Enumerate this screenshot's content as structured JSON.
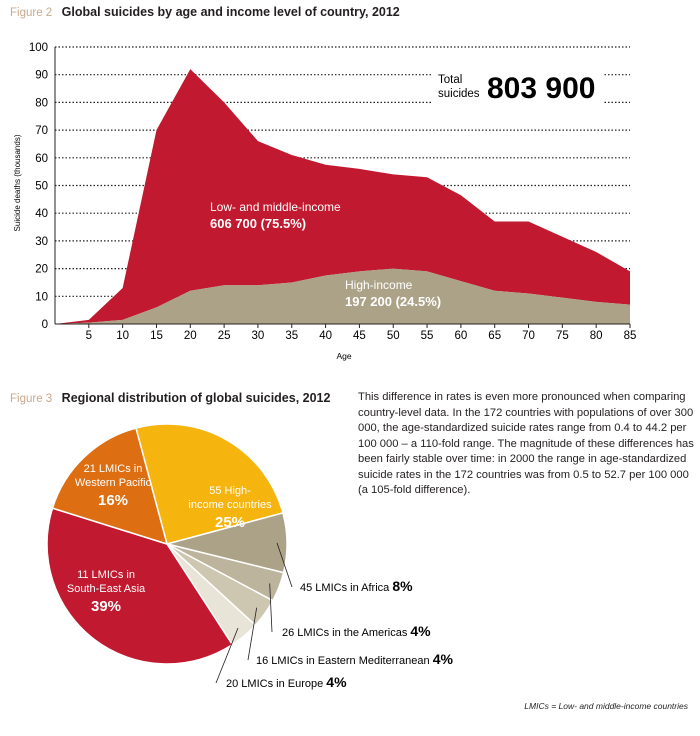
{
  "figure2": {
    "label": "Figure 2",
    "title": "Global suicides by age and income level of country, 2012"
  },
  "figure3": {
    "label": "Figure 3",
    "title": "Regional distribution of global suicides, 2012"
  },
  "total_box": {
    "label_line1": "Total",
    "label_line2": "suicides",
    "value": "803 900"
  },
  "paragraph": "This difference in rates is even more pronounced when comparing country-level data. In the 172 countries with populations of over 300 000, the age-standardized suicide rates range from 0.4 to 44.2 per 100 000 – a 110-fold range. The magnitude of these differences has been fairly stable over time: in 2000 the range in age-standardized suicide rates in the 172 countries was from 0.5 to 52.7 per 100 000 (a 105-fold difference).",
  "footnote": "LMICs = Low- and middle-income countries",
  "colors": {
    "lmic": "#c1192f",
    "high": "#aca288",
    "pie_yellow": "#f6b40f",
    "pie_orange": "#de6e12",
    "pie_red": "#c1192f",
    "pie_africa": "#aca288",
    "pie_americas": "#bcb49c",
    "pie_emed": "#cdc6b0",
    "pie_europe": "#e8e4d8"
  },
  "chart_data": [
    {
      "type": "area",
      "x": [
        0,
        5,
        10,
        15,
        20,
        25,
        30,
        35,
        40,
        45,
        50,
        55,
        60,
        65,
        70,
        75,
        80,
        85
      ],
      "xticks": [
        "5",
        "10",
        "15",
        "20",
        "25",
        "30",
        "35",
        "40",
        "45",
        "50",
        "55",
        "60",
        "65",
        "70",
        "75",
        "80",
        "85"
      ],
      "xlabel": "Age",
      "ylabel": "Suicide deaths (thousands)",
      "ylim": [
        0,
        100
      ],
      "yticks": [
        "0",
        "10",
        "20",
        "30",
        "40",
        "50",
        "60",
        "70",
        "80",
        "90",
        "100"
      ],
      "grid": "horizontal dotted",
      "series": [
        {
          "name": "High-income",
          "total_label": "197 200 (24.5%)",
          "values": [
            0,
            0.5,
            1.5,
            6,
            12,
            14,
            14,
            15,
            17.5,
            19,
            20,
            19,
            15.5,
            12,
            11,
            9.5,
            8,
            7
          ]
        },
        {
          "name": "Low- and middle-income",
          "total_label": "606 700 (75.5%)",
          "values": [
            0,
            1,
            11.5,
            64,
            80,
            66,
            52,
            46,
            40,
            37,
            34,
            34,
            31,
            25,
            26,
            22,
            18,
            12
          ]
        }
      ]
    },
    {
      "type": "pie",
      "slices": [
        {
          "label": "55 High-income countries",
          "pct": 25,
          "pct_label": "25%"
        },
        {
          "label": "45 LMICs in Africa",
          "pct": 8,
          "pct_label": "8%"
        },
        {
          "label": "26 LMICs in the Americas",
          "pct": 4,
          "pct_label": "4%"
        },
        {
          "label": "16 LMICs in Eastern Mediterranean",
          "pct": 4,
          "pct_label": "4%"
        },
        {
          "label": "20 LMICs in Europe",
          "pct": 4,
          "pct_label": "4%"
        },
        {
          "label": "11 LMICs in South-East Asia",
          "pct": 39,
          "pct_label": "39%"
        },
        {
          "label": "21 LMICs in Western Pacific",
          "pct": 16,
          "pct_label": "16%"
        }
      ]
    }
  ]
}
